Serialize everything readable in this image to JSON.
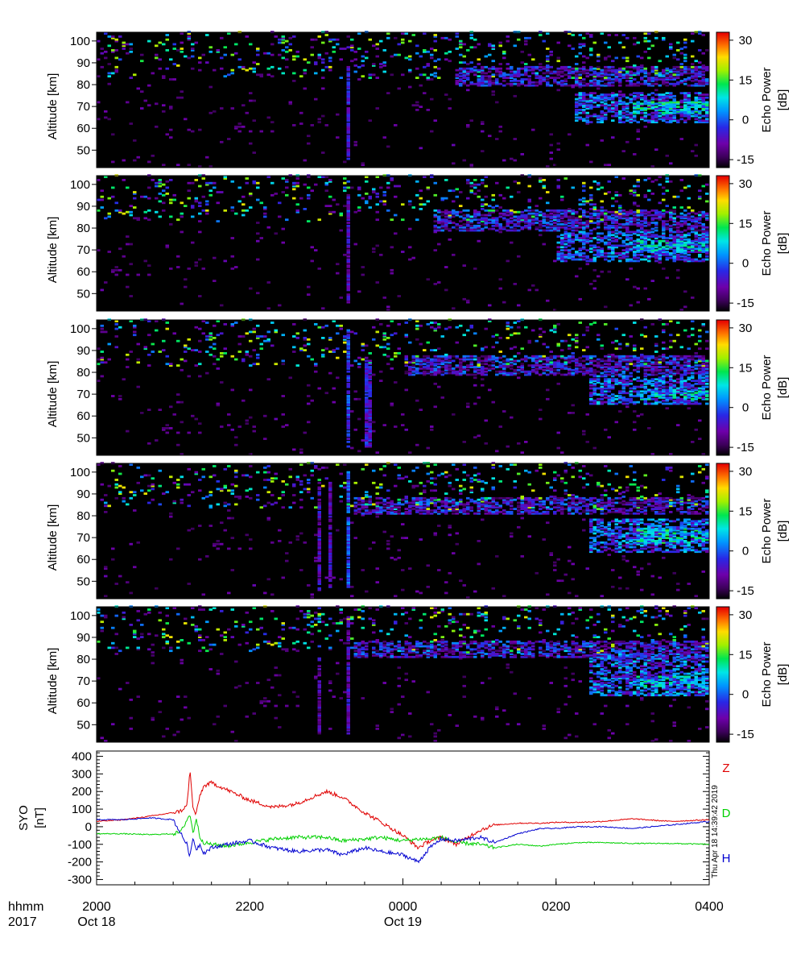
{
  "chart_data": [
    {
      "type": "heatmap",
      "panel": 1,
      "ylabel": "Altitude [km]",
      "yticks": [
        "50",
        "60",
        "70",
        "80",
        "90",
        "100"
      ],
      "ylim": [
        42,
        104
      ],
      "colorbar": {
        "label": "Echo Power",
        "unit": "[dB]",
        "ticks": [
          "30",
          "15",
          "0",
          "-15"
        ],
        "range": [
          -18,
          33
        ],
        "colormap": "rainbow"
      },
      "layers": [
        {
          "t0": 0.58,
          "t1": 1.0,
          "alt": [
            79,
            88
          ],
          "power": -5
        },
        {
          "t0": 0.78,
          "t1": 1.0,
          "alt": [
            62,
            76
          ],
          "power": 0
        },
        {
          "t0": 0.87,
          "t1": 1.0,
          "alt": [
            66,
            72
          ],
          "power": 8
        }
      ],
      "columns": [
        {
          "t": 0.41,
          "alt": [
            45,
            88
          ],
          "power": -6
        }
      ]
    },
    {
      "type": "heatmap",
      "panel": 2,
      "ylabel": "Altitude [km]",
      "yticks": [
        "50",
        "60",
        "70",
        "80",
        "90",
        "100"
      ],
      "ylim": [
        42,
        104
      ],
      "colorbar": {
        "label": "Echo Power",
        "unit": "[dB]",
        "ticks": [
          "30",
          "15",
          "0",
          "-15"
        ],
        "range": [
          -18,
          33
        ],
        "colormap": "rainbow"
      },
      "layers": [
        {
          "t0": 0.55,
          "t1": 1.0,
          "alt": [
            78,
            88
          ],
          "power": -5
        },
        {
          "t0": 0.75,
          "t1": 1.0,
          "alt": [
            64,
            78
          ],
          "power": 0
        },
        {
          "t0": 0.88,
          "t1": 1.0,
          "alt": [
            68,
            74
          ],
          "power": 6
        }
      ],
      "columns": [
        {
          "t": 0.41,
          "alt": [
            45,
            95
          ],
          "power": -8
        }
      ]
    },
    {
      "type": "heatmap",
      "panel": 3,
      "ylabel": "Altitude [km]",
      "yticks": [
        "50",
        "60",
        "70",
        "80",
        "90",
        "100"
      ],
      "ylim": [
        42,
        104
      ],
      "colorbar": {
        "label": "Echo Power",
        "unit": "[dB]",
        "ticks": [
          "30",
          "15",
          "0",
          "-15"
        ],
        "range": [
          -18,
          33
        ],
        "colormap": "rainbow"
      },
      "layers": [
        {
          "t0": 0.5,
          "t1": 1.0,
          "alt": [
            78,
            87
          ],
          "power": -5
        },
        {
          "t0": 0.8,
          "t1": 1.0,
          "alt": [
            65,
            78
          ],
          "power": 0
        },
        {
          "t0": 0.88,
          "t1": 1.0,
          "alt": [
            67,
            72
          ],
          "power": 6
        }
      ],
      "columns": [
        {
          "t": 0.41,
          "alt": [
            45,
            100
          ],
          "power": -3
        },
        {
          "t": 0.44,
          "alt": [
            45,
            85
          ],
          "power": -6
        }
      ]
    },
    {
      "type": "heatmap",
      "panel": 4,
      "ylabel": "Altitude [km]",
      "yticks": [
        "50",
        "60",
        "70",
        "80",
        "90",
        "100"
      ],
      "ylim": [
        42,
        104
      ],
      "colorbar": {
        "label": "Echo Power",
        "unit": "[dB]",
        "ticks": [
          "30",
          "15",
          "0",
          "-15"
        ],
        "range": [
          -18,
          33
        ],
        "colormap": "rainbow"
      },
      "layers": [
        {
          "t0": 0.42,
          "t1": 1.0,
          "alt": [
            80,
            88
          ],
          "power": -5
        },
        {
          "t0": 0.8,
          "t1": 1.0,
          "alt": [
            63,
            78
          ],
          "power": 0
        },
        {
          "t0": 0.88,
          "t1": 1.0,
          "alt": [
            67,
            74
          ],
          "power": 8
        }
      ],
      "columns": [
        {
          "t": 0.36,
          "alt": [
            45,
            95
          ],
          "power": -8
        },
        {
          "t": 0.38,
          "alt": [
            45,
            95
          ],
          "power": -8
        },
        {
          "t": 0.41,
          "alt": [
            45,
            100
          ],
          "power": -2
        }
      ]
    },
    {
      "type": "heatmap",
      "panel": 5,
      "ylabel": "Altitude [km]",
      "yticks": [
        "50",
        "60",
        "70",
        "80",
        "90",
        "100"
      ],
      "ylim": [
        42,
        104
      ],
      "colorbar": {
        "label": "Echo Power",
        "unit": "[dB]",
        "ticks": [
          "30",
          "15",
          "0",
          "-15"
        ],
        "range": [
          -18,
          33
        ],
        "colormap": "rainbow"
      },
      "layers": [
        {
          "t0": 0.42,
          "t1": 1.0,
          "alt": [
            80,
            88
          ],
          "power": -5
        },
        {
          "t0": 0.8,
          "t1": 1.0,
          "alt": [
            63,
            82
          ],
          "power": 0
        },
        {
          "t0": 0.88,
          "t1": 1.0,
          "alt": [
            66,
            72
          ],
          "power": 6
        }
      ],
      "columns": [
        {
          "t": 0.36,
          "alt": [
            45,
            80
          ],
          "power": -10
        },
        {
          "t": 0.41,
          "alt": [
            45,
            100
          ],
          "power": -8
        }
      ]
    },
    {
      "type": "line",
      "ylabel": "SYO",
      "yunit": "[nT]",
      "yticks": [
        "400",
        "300",
        "200",
        "100",
        "0",
        "-100",
        "-200",
        "-300"
      ],
      "ylim": [
        -330,
        430
      ],
      "x_hours": [
        0,
        0.35,
        0.7,
        1.0,
        1.1,
        1.18,
        1.22,
        1.26,
        1.3,
        1.35,
        1.4,
        1.5,
        1.7,
        2.0,
        2.3,
        2.6,
        3.0,
        3.2,
        3.5,
        3.7,
        4.0,
        4.2,
        4.35,
        4.5,
        4.7,
        5.0,
        5.2,
        5.5,
        5.8,
        6.0,
        6.3,
        6.6,
        7.0,
        7.5,
        8.0
      ],
      "series": [
        {
          "name": "Z",
          "color": "#e00000",
          "values": [
            30,
            40,
            60,
            80,
            90,
            120,
            320,
            100,
            70,
            180,
            230,
            250,
            210,
            150,
            110,
            130,
            200,
            170,
            80,
            30,
            -50,
            -120,
            -80,
            -60,
            -100,
            -20,
            10,
            20,
            20,
            25,
            25,
            30,
            45,
            30,
            40
          ]
        },
        {
          "name": "D",
          "color": "#00d000",
          "values": [
            -40,
            -40,
            -45,
            -40,
            -30,
            40,
            70,
            -40,
            50,
            -60,
            -90,
            -100,
            -110,
            -90,
            -70,
            -60,
            -60,
            -80,
            -70,
            -60,
            -80,
            -70,
            -70,
            -60,
            -90,
            -100,
            -120,
            -100,
            -110,
            -100,
            -90,
            -90,
            -95,
            -95,
            -100
          ]
        },
        {
          "name": "H",
          "color": "#0000d0",
          "values": [
            40,
            40,
            50,
            40,
            -40,
            -100,
            -170,
            -60,
            -130,
            -100,
            -150,
            -120,
            -100,
            -80,
            -120,
            -140,
            -130,
            -160,
            -120,
            -140,
            -160,
            -200,
            -120,
            -70,
            -80,
            -60,
            -90,
            -40,
            -10,
            -10,
            0,
            0,
            -10,
            10,
            30
          ]
        }
      ],
      "stamp": "Thu Apr 18 14:39:42 2019"
    }
  ],
  "xaxis": {
    "row_label": "hhmm",
    "year_label": "2017",
    "hours_total": 8,
    "ticks": [
      {
        "hour": 0,
        "label": "2000",
        "date": "Oct 18"
      },
      {
        "hour": 2,
        "label": "2200",
        "date": ""
      },
      {
        "hour": 4,
        "label": "0000",
        "date": "Oct 19"
      },
      {
        "hour": 6,
        "label": "0200",
        "date": ""
      },
      {
        "hour": 8,
        "label": "0400",
        "date": ""
      }
    ]
  }
}
